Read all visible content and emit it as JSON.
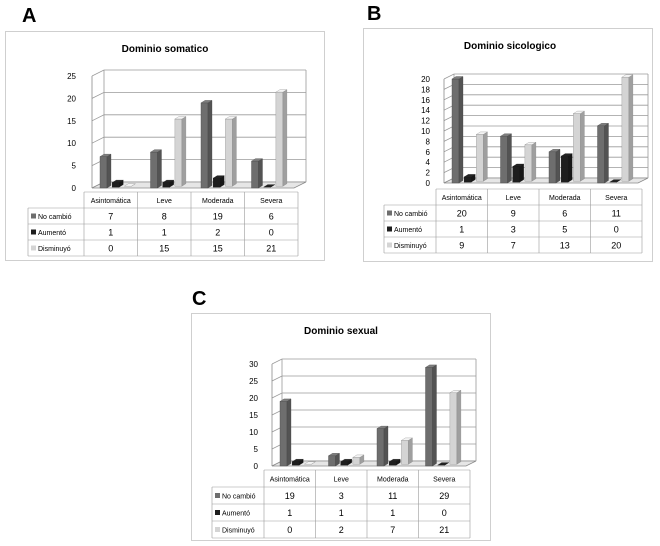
{
  "panels": [
    {
      "letter": "A",
      "chart_data": {
        "type": "bar",
        "title": "Dominio somatico",
        "categories": [
          "Asintomática",
          "Leve",
          "Moderada",
          "Severa"
        ],
        "series": [
          {
            "name": "No cambió",
            "values": [
              7,
              8,
              19,
              6
            ]
          },
          {
            "name": "Aumentó",
            "values": [
              1,
              1,
              2,
              0
            ]
          },
          {
            "name": "Disminuyó",
            "values": [
              0,
              15,
              15,
              21
            ]
          }
        ],
        "yticks": [
          0,
          5,
          10,
          15,
          20,
          25
        ],
        "ylim": [
          0,
          25
        ],
        "grid": true,
        "legend": "data-table",
        "table_values": [
          [
            "7",
            "8",
            "19",
            "6"
          ],
          [
            "1",
            "1",
            "2",
            "0"
          ],
          [
            "0",
            "15",
            "15",
            "21"
          ]
        ]
      }
    },
    {
      "letter": "B",
      "chart_data": {
        "type": "bar",
        "title": "Dominio sicologico",
        "categories": [
          "Asintomática",
          "Leve",
          "Moderada",
          "Severa"
        ],
        "series": [
          {
            "name": "No cambió",
            "values": [
              20,
              9,
              6,
              11
            ]
          },
          {
            "name": "Aumentó",
            "values": [
              1,
              3,
              5,
              0
            ]
          },
          {
            "name": "Disminuyó",
            "values": [
              9,
              7,
              13,
              20
            ]
          }
        ],
        "yticks": [
          0,
          2,
          4,
          6,
          8,
          10,
          12,
          14,
          16,
          18,
          20
        ],
        "ylim": [
          0,
          20
        ],
        "grid": true,
        "legend": "data-table",
        "table_values": [
          [
            "20",
            "9",
            "6",
            "11"
          ],
          [
            "1",
            "3",
            "5",
            "0"
          ],
          [
            "9",
            "7",
            "13",
            "20"
          ]
        ]
      }
    },
    {
      "letter": "C",
      "chart_data": {
        "type": "bar",
        "title": "Dominio sexual",
        "categories": [
          "Asintomática",
          "Leve",
          "Moderada",
          "Severa"
        ],
        "series": [
          {
            "name": "No cambió",
            "values": [
              19,
              3,
              11,
              29
            ]
          },
          {
            "name": "Aumentó",
            "values": [
              1,
              1,
              1,
              0
            ]
          },
          {
            "name": "Disminuyó",
            "values": [
              0,
              2,
              7,
              21
            ]
          }
        ],
        "yticks": [
          0,
          5,
          10,
          15,
          20,
          25,
          30
        ],
        "ylim": [
          0,
          30
        ],
        "grid": true,
        "legend": "data-table",
        "table_values": [
          [
            "19",
            "3",
            "11",
            "29"
          ],
          [
            "1",
            "1",
            "1",
            "0"
          ],
          [
            "0",
            "2",
            "7",
            "21"
          ]
        ]
      }
    }
  ],
  "colors": {
    "no_cambio": "#6e6e6e",
    "aumento": "#1e1e1e",
    "disminuyo": "#d4d4d4",
    "grid": "#9a9a9a"
  }
}
